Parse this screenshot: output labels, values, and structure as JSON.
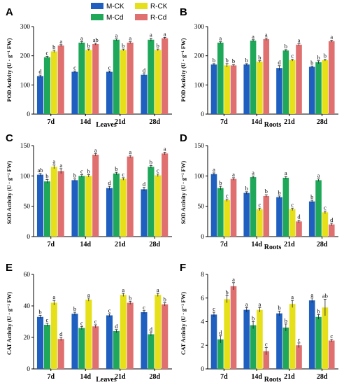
{
  "legend": [
    {
      "name": "M-CK",
      "color": "#1f5fc0"
    },
    {
      "name": "M-Cd",
      "color": "#1fa85a"
    },
    {
      "name": "R-CK",
      "color": "#e6e01a"
    },
    {
      "name": "R-Cd",
      "color": "#e06f6f"
    }
  ],
  "chart_data": [
    {
      "panel": "A",
      "type": "bar",
      "categories": [
        "7d",
        "14d",
        "21d",
        "28d"
      ],
      "xlabel": "Leaves",
      "ylabel": "POD Activity (U · g⁻¹ FW)",
      "ylim": [
        0,
        300
      ],
      "yticks": [
        0,
        100,
        200,
        300
      ],
      "series": [
        {
          "name": "M-CK",
          "values": [
            130,
            145,
            145,
            135
          ],
          "errors": [
            4,
            3,
            3,
            3
          ],
          "letters": [
            "d",
            "c",
            "c",
            "d"
          ]
        },
        {
          "name": "M-Cd",
          "values": [
            195,
            245,
            255,
            255
          ],
          "errors": [
            3,
            4,
            3,
            5
          ],
          "letters": [
            "c",
            "a",
            "a",
            "a"
          ]
        },
        {
          "name": "R-CK",
          "values": [
            215,
            220,
            220,
            220
          ],
          "errors": [
            4,
            3,
            3,
            3
          ],
          "letters": [
            "b",
            "b",
            "b",
            "b"
          ]
        },
        {
          "name": "R-Cd",
          "values": [
            235,
            240,
            245,
            260
          ],
          "errors": [
            3,
            3,
            3,
            3
          ],
          "letters": [
            "a",
            "ab",
            "a",
            "a"
          ]
        }
      ]
    },
    {
      "panel": "B",
      "type": "bar",
      "categories": [
        "7d",
        "14d",
        "21d",
        "28d"
      ],
      "xlabel": "Roots",
      "ylabel": "POD Activity (U · g⁻¹ FW)",
      "ylim": [
        0,
        300
      ],
      "yticks": [
        0,
        100,
        200,
        300
      ],
      "series": [
        {
          "name": "M-CK",
          "values": [
            170,
            170,
            158,
            162
          ],
          "errors": [
            3,
            3,
            8,
            3
          ],
          "letters": [
            "b",
            "b",
            "d",
            "b"
          ]
        },
        {
          "name": "M-Cd",
          "values": [
            245,
            252,
            218,
            178
          ],
          "errors": [
            3,
            3,
            3,
            5
          ],
          "letters": [
            "a",
            "a",
            "b",
            "b"
          ]
        },
        {
          "name": "R-CK",
          "values": [
            167,
            180,
            185,
            185
          ],
          "errors": [
            6,
            3,
            3,
            3
          ],
          "letters": [
            "b",
            "b",
            "c",
            "b"
          ]
        },
        {
          "name": "R-Cd",
          "values": [
            167,
            257,
            238,
            250
          ],
          "errors": [
            3,
            4,
            3,
            3
          ],
          "letters": [
            "b",
            "a",
            "a",
            "a"
          ]
        }
      ]
    },
    {
      "panel": "C",
      "type": "bar",
      "categories": [
        "7d",
        "14d",
        "21d",
        "28d"
      ],
      "xlabel": "",
      "ylabel": "SOD Activity (U · g⁻¹ FW)",
      "ylim": [
        0,
        150
      ],
      "yticks": [
        0,
        50,
        100,
        150
      ],
      "series": [
        {
          "name": "M-CK",
          "values": [
            102,
            93,
            80,
            78
          ],
          "errors": [
            2,
            2,
            3,
            3
          ],
          "letters": [
            "ab",
            "b",
            "d",
            "d"
          ]
        },
        {
          "name": "M-Cd",
          "values": [
            91,
            100,
            104,
            115
          ],
          "errors": [
            3,
            2,
            2,
            2
          ],
          "letters": [
            "b",
            "c",
            "b",
            "b"
          ]
        },
        {
          "name": "R-CK",
          "values": [
            115,
            100,
            95,
            101
          ],
          "errors": [
            3,
            2,
            2,
            2
          ],
          "letters": [
            "a",
            "b",
            "c",
            "c"
          ]
        },
        {
          "name": "R-Cd",
          "values": [
            108,
            135,
            132,
            137
          ],
          "errors": [
            4,
            2,
            2,
            2
          ],
          "letters": [
            "a",
            "a",
            "a",
            "a"
          ]
        }
      ]
    },
    {
      "panel": "D",
      "type": "bar",
      "categories": [
        "7d",
        "14d",
        "21d",
        "28d"
      ],
      "xlabel": "Roots",
      "ylabel": "SOD Activity (U · g⁻¹ FW)",
      "ylim": [
        0,
        150
      ],
      "yticks": [
        0,
        50,
        100,
        150
      ],
      "series": [
        {
          "name": "M-CK",
          "values": [
            103,
            72,
            65,
            58
          ],
          "errors": [
            2,
            2,
            2,
            2
          ],
          "letters": [
            "a",
            "b",
            "b",
            "b"
          ]
        },
        {
          "name": "M-Cd",
          "values": [
            80,
            98,
            97,
            93
          ],
          "errors": [
            3,
            2,
            2,
            2
          ],
          "letters": [
            "b",
            "a",
            "a",
            "a"
          ]
        },
        {
          "name": "R-CK",
          "values": [
            60,
            45,
            45,
            40
          ],
          "errors": [
            2,
            2,
            2,
            2
          ],
          "letters": [
            "c",
            "c",
            "c",
            "c"
          ]
        },
        {
          "name": "R-Cd",
          "values": [
            95,
            67,
            25,
            20
          ],
          "errors": [
            2,
            2,
            2,
            2
          ],
          "letters": [
            "a",
            "b",
            "d",
            "d"
          ]
        }
      ]
    },
    {
      "panel": "E",
      "type": "bar",
      "categories": [
        "7d",
        "14d",
        "21d",
        "28d"
      ],
      "xlabel": "Leaves",
      "ylabel": "CAT Activity (U · g⁻¹ FW)",
      "ylim": [
        0,
        60
      ],
      "yticks": [
        0,
        20,
        40,
        60
      ],
      "series": [
        {
          "name": "M-CK",
          "values": [
            33,
            35,
            34,
            36
          ],
          "errors": [
            1,
            1,
            1,
            1
          ],
          "letters": [
            "b",
            "b",
            "c",
            "c"
          ]
        },
        {
          "name": "M-Cd",
          "values": [
            28,
            26,
            24,
            22
          ],
          "errors": [
            1,
            1,
            1,
            1
          ],
          "letters": [
            "c",
            "c",
            "d",
            "d"
          ]
        },
        {
          "name": "R-CK",
          "values": [
            42,
            44,
            47,
            47
          ],
          "errors": [
            1.5,
            1,
            1,
            1
          ],
          "letters": [
            "a",
            "a",
            "a",
            "a"
          ]
        },
        {
          "name": "R-Cd",
          "values": [
            19,
            27,
            42,
            41
          ],
          "errors": [
            1,
            1,
            1,
            1
          ],
          "letters": [
            "d",
            "c",
            "b",
            "b"
          ]
        }
      ]
    },
    {
      "panel": "F",
      "type": "bar",
      "categories": [
        "7d",
        "14d",
        "21d",
        "28d"
      ],
      "xlabel": "Roots",
      "ylabel": "CAT Activity (U · g⁻¹ FW)",
      "ylim": [
        0,
        8
      ],
      "yticks": [
        0,
        2,
        4,
        6,
        8
      ],
      "series": [
        {
          "name": "M-CK",
          "values": [
            4.6,
            5.0,
            4.7,
            5.8
          ],
          "errors": [
            0.2,
            0.2,
            0.2,
            0.2
          ],
          "letters": [
            "c",
            "a",
            "b",
            "a"
          ]
        },
        {
          "name": "M-Cd",
          "values": [
            2.5,
            3.7,
            3.5,
            4.4
          ],
          "errors": [
            0.3,
            0.3,
            0.3,
            0.2
          ],
          "letters": [
            "d",
            "b",
            "b",
            "b"
          ]
        },
        {
          "name": "R-CK",
          "values": [
            5.9,
            5.0,
            5.5,
            5.2
          ],
          "errors": [
            0.3,
            0.2,
            0.3,
            0.7
          ],
          "letters": [
            "b",
            "a",
            "a",
            "ab"
          ]
        },
        {
          "name": "R-Cd",
          "values": [
            7.0,
            1.5,
            2.0,
            2.4
          ],
          "errors": [
            0.3,
            0.3,
            0.2,
            0.1
          ],
          "letters": [
            "a",
            "c",
            "c",
            "c"
          ]
        }
      ]
    }
  ]
}
